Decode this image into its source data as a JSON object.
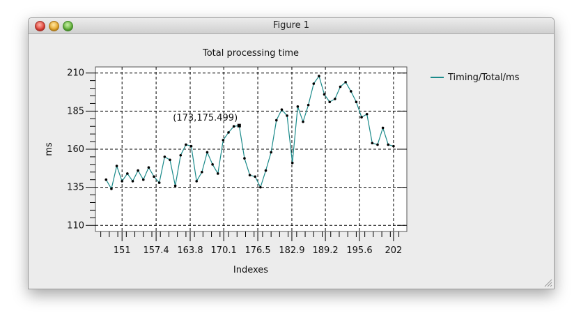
{
  "window": {
    "title": "Figure 1"
  },
  "colors": {
    "line": "#1a8a8a",
    "background": "#ececec"
  },
  "chart_data": {
    "type": "line",
    "title": "Total processing time",
    "xlabel": "Indexes",
    "ylabel": "ms",
    "xlim": [
      146,
      204.5
    ],
    "ylim": [
      106,
      214
    ],
    "yticks": [
      110,
      135,
      160,
      185,
      210
    ],
    "xticks": [
      151,
      157.4,
      163.8,
      170.1,
      176.5,
      182.9,
      189.2,
      195.6,
      202
    ],
    "ytick_labels": [
      "110",
      "135",
      "160",
      "185",
      "210"
    ],
    "xtick_labels": [
      "151",
      "157.4",
      "163.8",
      "170.1",
      "176.5",
      "182.9",
      "189.2",
      "195.6",
      "202"
    ],
    "grid": true,
    "legend_position": "right",
    "series": [
      {
        "name": "Timing/Total/ms",
        "x": [
          148,
          149,
          150,
          151,
          152,
          153,
          154,
          155,
          156,
          157,
          158,
          159,
          160,
          161,
          162,
          163,
          164,
          165,
          166,
          167,
          168,
          169,
          170,
          171,
          172,
          173,
          174,
          175,
          176,
          177,
          178,
          179,
          180,
          181,
          182,
          183,
          184,
          185,
          186,
          187,
          188,
          189,
          190,
          191,
          192,
          193,
          194,
          195,
          196,
          197,
          198,
          199,
          200,
          201,
          202
        ],
        "y": [
          140,
          134,
          149,
          139,
          144,
          139,
          146,
          140,
          148,
          142,
          138,
          155,
          153,
          136,
          156,
          163,
          162,
          139,
          145,
          158,
          150,
          144,
          166,
          171,
          175,
          175.5,
          154,
          143,
          142,
          135,
          146,
          158,
          179,
          186,
          182,
          151,
          188,
          178,
          189,
          203,
          208,
          196,
          191,
          193,
          201,
          204,
          198,
          191,
          181,
          183,
          164,
          163,
          174,
          163,
          162
        ]
      }
    ],
    "annotation": {
      "text": "(173,175.499)",
      "x": 173,
      "y": 175.499
    }
  }
}
